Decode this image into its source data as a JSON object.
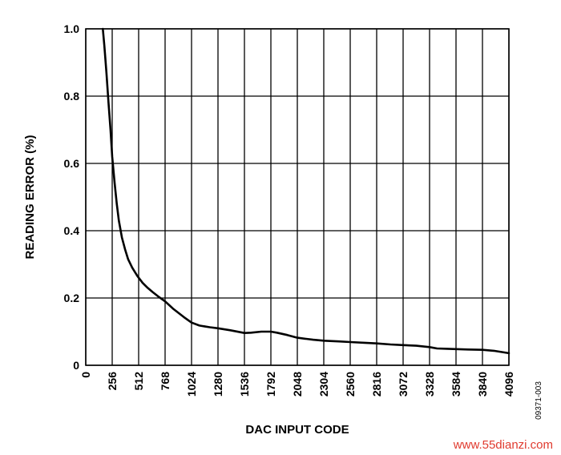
{
  "chart_data": {
    "type": "line",
    "xlabel": "DAC INPUT CODE",
    "ylabel": "READING ERROR (%)",
    "xlim": [
      0,
      4096
    ],
    "ylim": [
      0,
      1.0
    ],
    "x_ticks": [
      "0",
      "256",
      "512",
      "768",
      "1024",
      "1280",
      "1536",
      "1792",
      "2048",
      "2304",
      "2560",
      "2816",
      "3072",
      "3328",
      "3584",
      "3840",
      "4096"
    ],
    "y_ticks": [
      "0",
      "0.2",
      "0.4",
      "0.6",
      "0.8",
      "1.0"
    ],
    "grid": true,
    "series": [
      {
        "color": "#000000",
        "x": [
          165,
          180,
          200,
          220,
          240,
          256,
          280,
          300,
          320,
          350,
          380,
          410,
          450,
          500,
          550,
          600,
          650,
          700,
          768,
          850,
          950,
          1024,
          1100,
          1200,
          1280,
          1400,
          1536,
          1600,
          1700,
          1792,
          1850,
          1950,
          2048,
          2200,
          2304,
          2450,
          2560,
          2700,
          2816,
          2950,
          3072,
          3200,
          3328,
          3400,
          3500,
          3584,
          3700,
          3840,
          3950,
          4096
        ],
        "y": [
          1.0,
          0.95,
          0.87,
          0.78,
          0.7,
          0.62,
          0.54,
          0.48,
          0.43,
          0.38,
          0.345,
          0.315,
          0.29,
          0.265,
          0.245,
          0.23,
          0.217,
          0.205,
          0.19,
          0.167,
          0.143,
          0.127,
          0.118,
          0.113,
          0.11,
          0.104,
          0.096,
          0.097,
          0.1,
          0.1,
          0.097,
          0.09,
          0.082,
          0.076,
          0.073,
          0.071,
          0.069,
          0.067,
          0.065,
          0.062,
          0.06,
          0.058,
          0.054,
          0.05,
          0.049,
          0.048,
          0.047,
          0.046,
          0.043,
          0.036
        ]
      }
    ]
  },
  "figure_id": "09371-003",
  "watermark": "www.55dianzi.com"
}
